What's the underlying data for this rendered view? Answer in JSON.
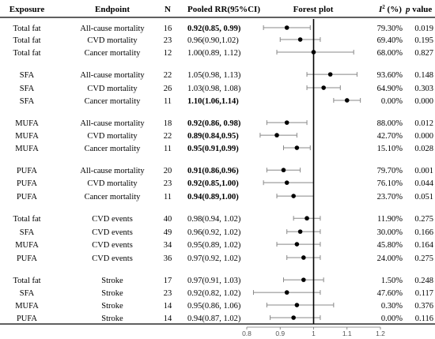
{
  "headers": {
    "exposure": "Exposure",
    "endpoint": "Endpoint",
    "n": "N",
    "rr": "Pooled RR(95%CI)",
    "forest": "Forest plot",
    "i2_symbol": "I",
    "i2_sup": "2",
    "i2_unit": " (%)",
    "p_italic": "p",
    "p_word": " value"
  },
  "chart_data": {
    "type": "forest",
    "xlim": [
      0.8,
      1.2
    ],
    "reference_line": 1,
    "ticks": [
      "0.8",
      "0.9",
      "1",
      "1.1",
      "1.2"
    ],
    "rows": [
      {
        "exposure": "Total fat",
        "endpoint": "All-cause mortality",
        "n": "16",
        "rr_text": "0.92(0.85, 0.99)",
        "rr": 0.92,
        "lo": 0.85,
        "hi": 0.99,
        "bold": true,
        "i2": "79.30%",
        "p": "0.019"
      },
      {
        "exposure": "Total fat",
        "endpoint": "CVD mortality",
        "n": "23",
        "rr_text": "0.96(0.90,1.02)",
        "rr": 0.96,
        "lo": 0.9,
        "hi": 1.02,
        "bold": false,
        "i2": "69.40%",
        "p": "0.195"
      },
      {
        "exposure": "Total fat",
        "endpoint": "Cancer mortality",
        "n": "12",
        "rr_text": "1.00(0.89, 1.12)",
        "rr": 1.0,
        "lo": 0.89,
        "hi": 1.12,
        "bold": false,
        "i2": "68.00%",
        "p": "0.827"
      },
      {
        "exposure": "SFA",
        "endpoint": "All-cause mortality",
        "n": "22",
        "rr_text": "1.05(0.98, 1.13)",
        "rr": 1.05,
        "lo": 0.98,
        "hi": 1.13,
        "bold": false,
        "i2": "93.60%",
        "p": "0.148"
      },
      {
        "exposure": "SFA",
        "endpoint": "CVD mortality",
        "n": "26",
        "rr_text": "1.03(0.98, 1.08)",
        "rr": 1.03,
        "lo": 0.98,
        "hi": 1.08,
        "bold": false,
        "i2": "64.90%",
        "p": "0.303"
      },
      {
        "exposure": "SFA",
        "endpoint": "Cancer mortality",
        "n": "11",
        "rr_text": "1.10(1.06,1.14)",
        "rr": 1.1,
        "lo": 1.06,
        "hi": 1.14,
        "bold": true,
        "i2": "0.00%",
        "p": "0.000"
      },
      {
        "exposure": "MUFA",
        "endpoint": "All-cause mortality",
        "n": "18",
        "rr_text": "0.92(0.86, 0.98)",
        "rr": 0.92,
        "lo": 0.86,
        "hi": 0.98,
        "bold": true,
        "i2": "88.00%",
        "p": "0.012"
      },
      {
        "exposure": "MUFA",
        "endpoint": "CVD mortality",
        "n": "22",
        "rr_text": "0.89(0.84,0.95)",
        "rr": 0.89,
        "lo": 0.84,
        "hi": 0.95,
        "bold": true,
        "i2": "42.70%",
        "p": "0.000"
      },
      {
        "exposure": "MUFA",
        "endpoint": "Cancer mortality",
        "n": "11",
        "rr_text": "0.95(0.91,0.99)",
        "rr": 0.95,
        "lo": 0.91,
        "hi": 0.99,
        "bold": true,
        "i2": "15.10%",
        "p": "0.028"
      },
      {
        "exposure": "PUFA",
        "endpoint": "All-cause mortality",
        "n": "20",
        "rr_text": "0.91(0.86,0.96)",
        "rr": 0.91,
        "lo": 0.86,
        "hi": 0.96,
        "bold": true,
        "i2": "79.70%",
        "p": "0.001"
      },
      {
        "exposure": "PUFA",
        "endpoint": "CVD mortality",
        "n": "23",
        "rr_text": "0.92(0.85,1.00)",
        "rr": 0.92,
        "lo": 0.85,
        "hi": 1.0,
        "bold": true,
        "i2": "76.10%",
        "p": "0.044"
      },
      {
        "exposure": "PUFA",
        "endpoint": "Cancer mortality",
        "n": "11",
        "rr_text": "0.94(0.89,1.00)",
        "rr": 0.94,
        "lo": 0.89,
        "hi": 1.0,
        "bold": true,
        "i2": "23.70%",
        "p": "0.051"
      },
      {
        "exposure": "Total fat",
        "endpoint": "CVD events",
        "n": "40",
        "rr_text": "0.98(0.94, 1.02)",
        "rr": 0.98,
        "lo": 0.94,
        "hi": 1.02,
        "bold": false,
        "i2": "11.90%",
        "p": "0.275"
      },
      {
        "exposure": "SFA",
        "endpoint": "CVD events",
        "n": "49",
        "rr_text": "0.96(0.92, 1.02)",
        "rr": 0.96,
        "lo": 0.92,
        "hi": 1.02,
        "bold": false,
        "i2": "30.00%",
        "p": "0.166"
      },
      {
        "exposure": "MUFA",
        "endpoint": "CVD events",
        "n": "34",
        "rr_text": "0.95(0.89, 1.02)",
        "rr": 0.95,
        "lo": 0.89,
        "hi": 1.02,
        "bold": false,
        "i2": "45.80%",
        "p": "0.164"
      },
      {
        "exposure": "PUFA",
        "endpoint": "CVD events",
        "n": "36",
        "rr_text": "0.97(0.92, 1.02)",
        "rr": 0.97,
        "lo": 0.92,
        "hi": 1.02,
        "bold": false,
        "i2": "24.00%",
        "p": "0.275"
      },
      {
        "exposure": "Total fat",
        "endpoint": "Stroke",
        "n": "17",
        "rr_text": "0.97(0.91, 1.03)",
        "rr": 0.97,
        "lo": 0.91,
        "hi": 1.03,
        "bold": false,
        "i2": "1.50%",
        "p": "0.248"
      },
      {
        "exposure": "SFA",
        "endpoint": "Stroke",
        "n": "23",
        "rr_text": "0.92(0.82, 1.02)",
        "rr": 0.92,
        "lo": 0.82,
        "hi": 1.02,
        "bold": false,
        "i2": "47.60%",
        "p": "0.117"
      },
      {
        "exposure": "MUFA",
        "endpoint": "Stroke",
        "n": "14",
        "rr_text": "0.95(0.86, 1.06)",
        "rr": 0.95,
        "lo": 0.86,
        "hi": 1.06,
        "bold": false,
        "i2": "0.30%",
        "p": "0.376"
      },
      {
        "exposure": "PUFA",
        "endpoint": "Stroke",
        "n": "14",
        "rr_text": "0.94(0.87, 1.02)",
        "rr": 0.94,
        "lo": 0.87,
        "hi": 1.02,
        "bold": false,
        "i2": "0.00%",
        "p": "0.116"
      }
    ]
  }
}
